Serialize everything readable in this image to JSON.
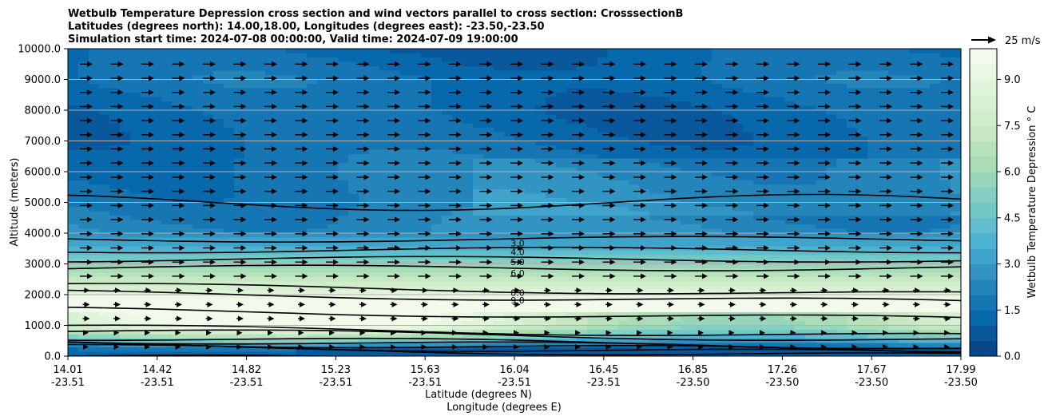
{
  "chart_data": {
    "type": "contourf",
    "title_lines": [
      "Wetbulb Temperature Depression cross section and wind vectors parallel to cross section: CrosssectionB",
      "Latitudes (degrees north): 14.00,18.00, Longitudes (degrees east): -23.50,-23.50",
      "Simulation start time: 2024-07-08 00:00:00, Valid time: 2024-07-09 19:00:00"
    ],
    "xlabel_lines": [
      "Latitude (degrees N)",
      "Longitude (degrees E)"
    ],
    "ylabel": "Altitude (meters)",
    "ylim": [
      0,
      10000
    ],
    "y_ticks": [
      "0.0",
      "1000.0",
      "2000.0",
      "3000.0",
      "4000.0",
      "5000.0",
      "6000.0",
      "7000.0",
      "8000.0",
      "9000.0",
      "10000.0"
    ],
    "x_ticks": [
      {
        "lat": "14.01",
        "lon": "-23.51"
      },
      {
        "lat": "14.42",
        "lon": "-23.51"
      },
      {
        "lat": "14.82",
        "lon": "-23.51"
      },
      {
        "lat": "15.23",
        "lon": "-23.51"
      },
      {
        "lat": "15.63",
        "lon": "-23.51"
      },
      {
        "lat": "16.04",
        "lon": "-23.51"
      },
      {
        "lat": "16.45",
        "lon": "-23.51"
      },
      {
        "lat": "16.85",
        "lon": "-23.50"
      },
      {
        "lat": "17.26",
        "lon": "-23.50"
      },
      {
        "lat": "17.67",
        "lon": "-23.50"
      },
      {
        "lat": "17.99",
        "lon": "-23.50"
      }
    ],
    "colorbar": {
      "label": "Wetbulb Temperature Depression $^\\circ$C",
      "label_text": "Wetbulb Temperature Depression ° C",
      "min": 0,
      "max": 10,
      "ticks": [
        "0.0",
        "1.5",
        "3.0",
        "4.5",
        "6.0",
        "7.5",
        "9.0"
      ],
      "colormap": "GnBu_r",
      "levels": 20
    },
    "quiver_key": "25 m/s",
    "contour_levels": [
      "1.0",
      "2.0",
      "3.0",
      "4.0",
      "5.0",
      "6.0",
      "8.0",
      "9.0",
      "10.0"
    ],
    "grid": "horizontal",
    "profile_altitudes_m": [
      0,
      300,
      600,
      1000,
      1500,
      2000,
      2300,
      2600,
      3000,
      3300,
      3600,
      4000,
      5000,
      6000,
      7000,
      8000,
      9000,
      10000
    ],
    "profile_depression_C": [
      1.0,
      2.0,
      6.0,
      9.5,
      10.0,
      9.2,
      8.0,
      7.0,
      5.5,
      4.5,
      3.5,
      2.5,
      2.0,
      1.8,
      1.4,
      1.3,
      1.6,
      1.2
    ]
  }
}
